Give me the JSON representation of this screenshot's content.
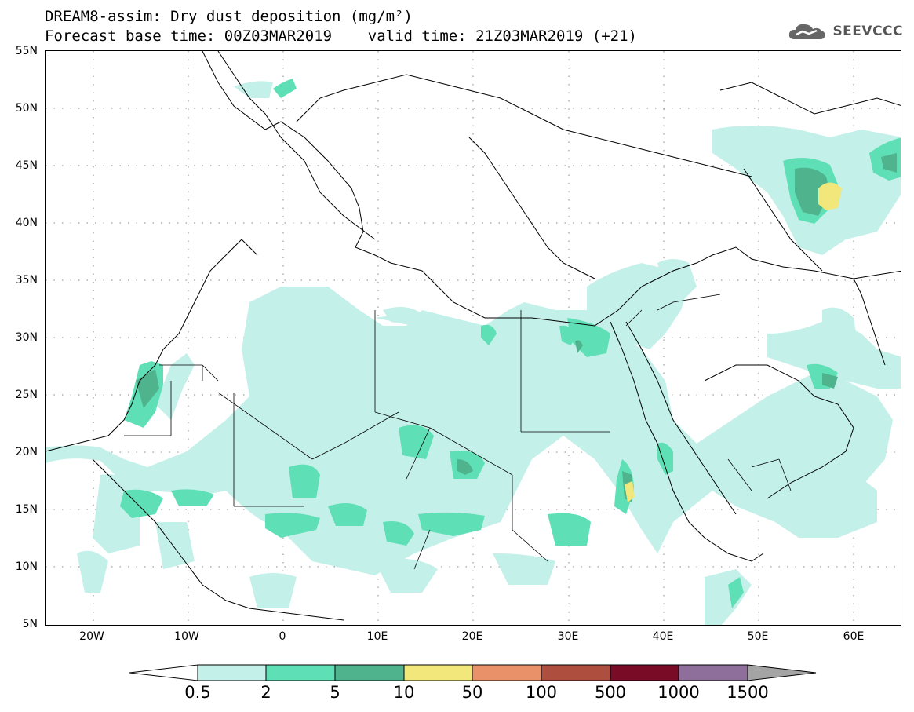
{
  "header": {
    "title": "DREAM8-assim: Dry dust deposition (mg/m²)",
    "subtitle": "Forecast base time: 00Z03MAR2019    valid time: 21Z03MAR2019 (+21)",
    "logo_text": "SEEVCCC",
    "logo_icon": "cloud-icon"
  },
  "map": {
    "lat_labels": [
      "55N",
      "50N",
      "45N",
      "40N",
      "35N",
      "30N",
      "25N",
      "20N",
      "15N",
      "10N",
      "5N"
    ],
    "lon_labels": [
      "20W",
      "10W",
      "0",
      "10E",
      "20E",
      "30E",
      "40E",
      "50E",
      "60E"
    ],
    "grid": "dotted"
  },
  "legend": {
    "thresholds": [
      "0.5",
      "2",
      "5",
      "10",
      "50",
      "100",
      "500",
      "1000",
      "1500"
    ],
    "colors": [
      "#c3f0e9",
      "#5fdfb6",
      "#4fb38e",
      "#f2e77a",
      "#e9926a",
      "#ad4e3e",
      "#7a0b27",
      "#8e6f9b",
      "#a4a4a4"
    ],
    "unit_note": ""
  }
}
